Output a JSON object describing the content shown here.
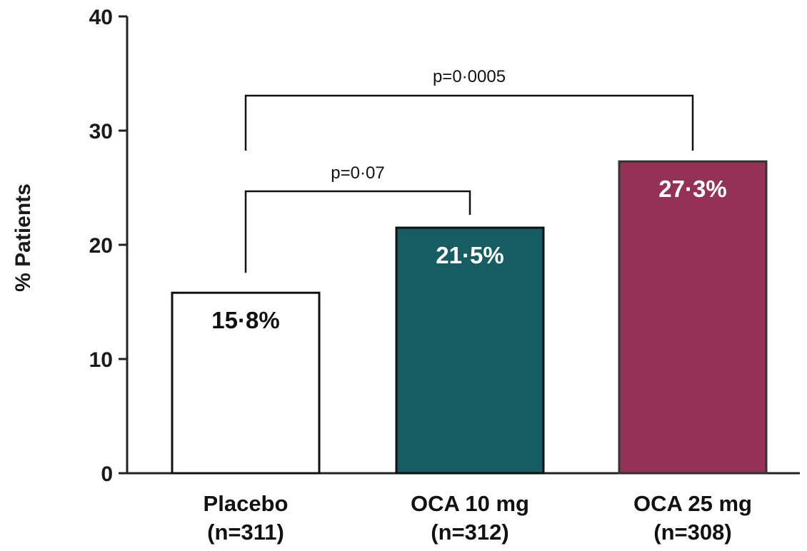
{
  "chart_data": {
    "type": "bar",
    "ylabel": "% Patients",
    "xlabel": "",
    "ylim": [
      0,
      40
    ],
    "yticks": [
      0,
      10,
      20,
      30,
      40
    ],
    "grid": false,
    "categories": [
      {
        "name": "Placebo",
        "n_label": "(n=311)"
      },
      {
        "name": "OCA 10 mg",
        "n_label": "(n=312)"
      },
      {
        "name": "OCA 25 mg",
        "n_label": "(n=308)"
      }
    ],
    "values": [
      15.8,
      21.5,
      27.3
    ],
    "data_labels": [
      "15·8%",
      "21·5%",
      "27·3%"
    ],
    "colors": {
      "bars": [
        "#ffffff",
        "#155c63",
        "#933254"
      ],
      "bar_outlines": [
        "#111111",
        "#111111",
        "#333333"
      ],
      "label_text": [
        "#111111",
        "#ffffff",
        "#ffffff"
      ]
    },
    "comparisons": [
      {
        "from": 0,
        "to": 1,
        "label": "p=0·07"
      },
      {
        "from": 0,
        "to": 2,
        "label": "p=0·0005"
      }
    ]
  }
}
